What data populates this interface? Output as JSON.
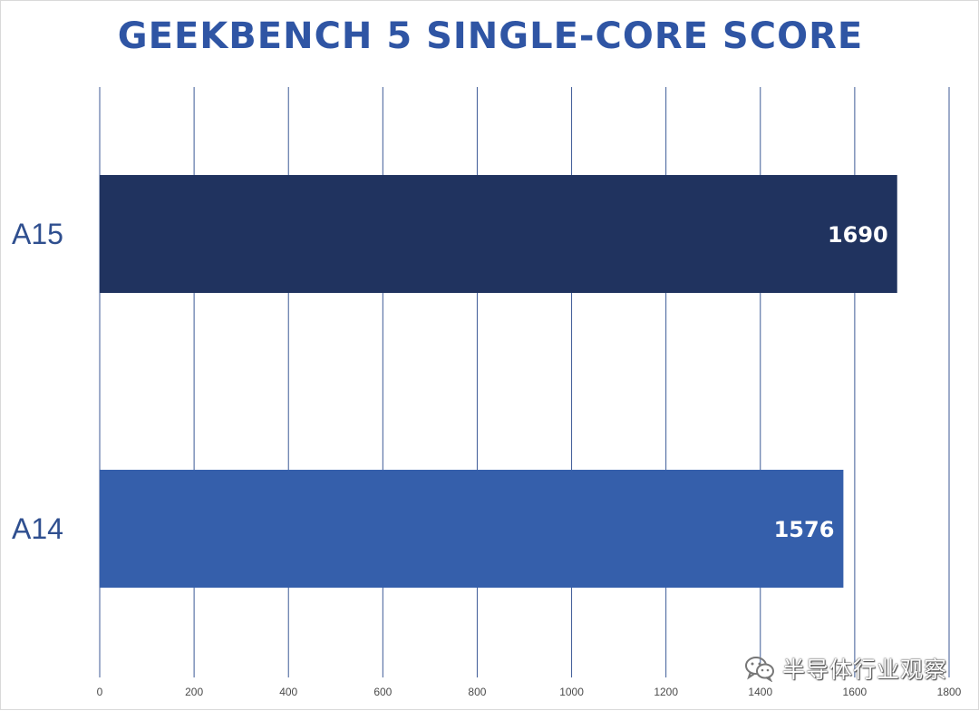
{
  "chart_data": {
    "type": "bar",
    "orientation": "horizontal",
    "title": "GEEKBENCH 5 SINGLE-CORE SCORE",
    "categories": [
      "A15",
      "A14"
    ],
    "values": [
      1690,
      1576
    ],
    "bar_colors": [
      "#20335f",
      "#355fab"
    ],
    "xlim": [
      0,
      1800
    ],
    "x_ticks": [
      0,
      200,
      400,
      600,
      800,
      1000,
      1200,
      1400,
      1600,
      1800
    ],
    "grid": true,
    "data_labels": [
      "1690",
      "1576"
    ]
  },
  "colors": {
    "title": "#2f55a4",
    "category_label": "#2f4f8f",
    "gridline": "#3d5a96"
  },
  "watermark": {
    "text": "半导体行业观察",
    "icon": "wechat-icon"
  }
}
